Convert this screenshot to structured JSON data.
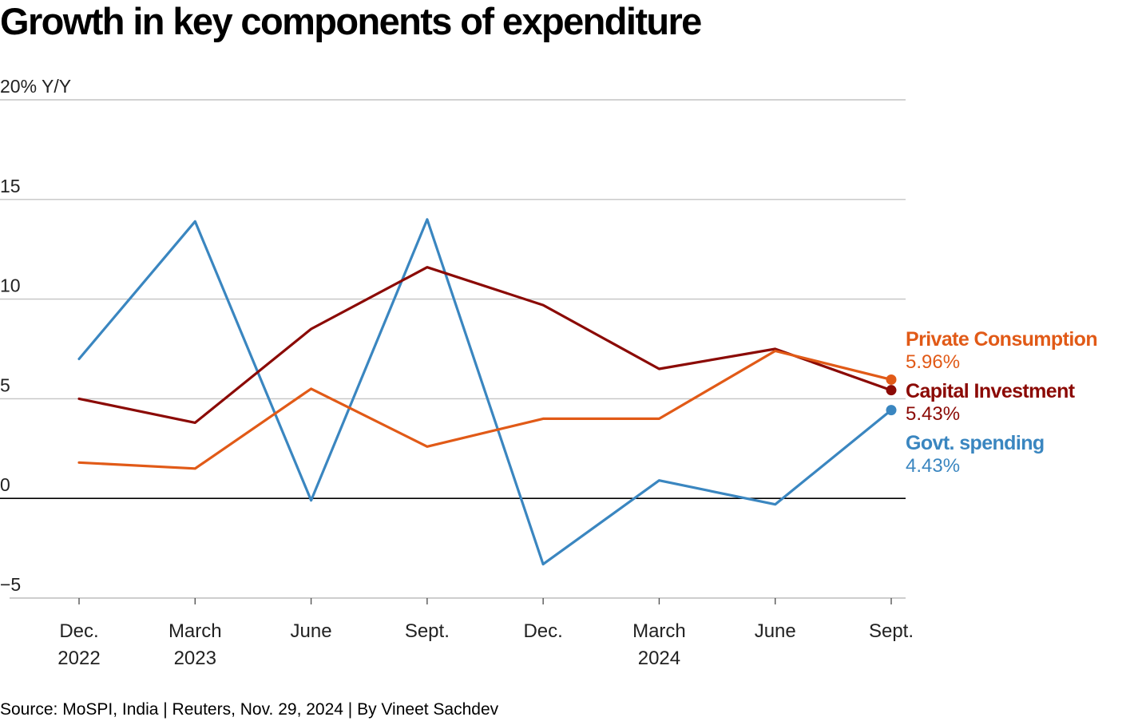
{
  "chart_data": {
    "type": "line",
    "title": "Growth in key components of expenditure",
    "y_unit_label": "20% Y/Y",
    "ylabel": "",
    "xlabel": "",
    "ylim": [
      -5,
      20
    ],
    "yticks": [
      -5,
      0,
      5,
      10,
      15,
      20
    ],
    "ytick_labels": [
      "−5",
      "0",
      "5",
      "10",
      "15",
      "20% Y/Y"
    ],
    "grid": true,
    "x": [
      [
        "Dec.",
        "2022"
      ],
      [
        "March",
        "2023"
      ],
      [
        "June"
      ],
      [
        "Sept."
      ],
      [
        "Dec."
      ],
      [
        "March",
        "2024"
      ],
      [
        "June"
      ],
      [
        "Sept."
      ]
    ],
    "series": [
      {
        "name": "Govt. spending",
        "color": "#3a86c0",
        "values": [
          7.0,
          13.9,
          -0.1,
          14.0,
          -3.3,
          0.9,
          -0.3,
          4.43
        ],
        "end_label": "4.43%"
      },
      {
        "name": "Capital Investment",
        "color": "#8b0a05",
        "values": [
          5.0,
          3.8,
          8.5,
          11.6,
          9.7,
          6.5,
          7.5,
          5.43
        ],
        "end_label": "5.43%"
      },
      {
        "name": "Private Consumption",
        "color": "#e15a17",
        "values": [
          1.8,
          1.5,
          5.5,
          2.6,
          4.0,
          4.0,
          7.4,
          5.96
        ],
        "end_label": "5.96%"
      }
    ],
    "legend_order": [
      "Private Consumption",
      "Capital Investment",
      "Govt. spending"
    ],
    "legend_placement": "right-end-of-lines",
    "source": "Source: MoSPI, India | Reuters, Nov. 29, 2024 | By Vineet Sachdev"
  }
}
